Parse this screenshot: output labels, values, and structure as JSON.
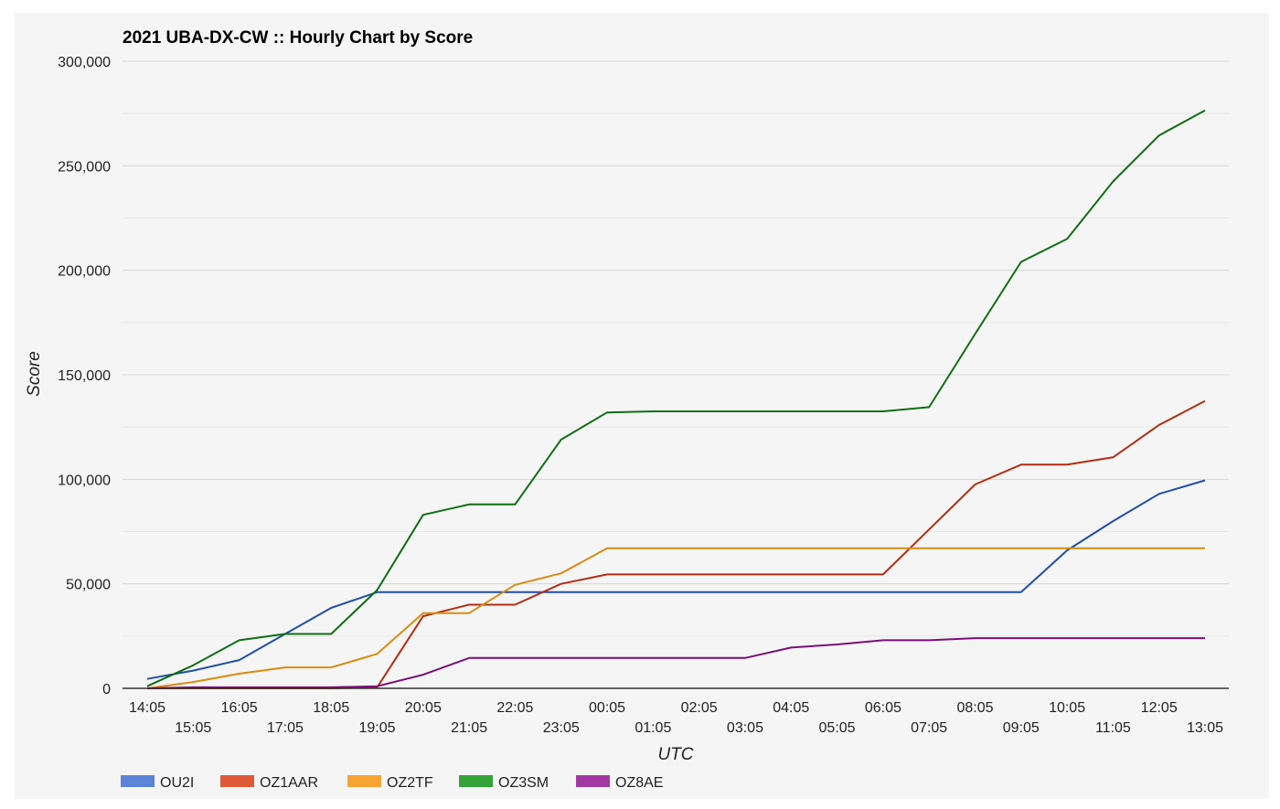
{
  "chart_data": {
    "type": "line",
    "title": "2021 UBA-DX-CW :: Hourly Chart by Score",
    "xlabel": "UTC",
    "ylabel": "Score",
    "ylim": [
      0,
      300000
    ],
    "yticks": [
      0,
      50000,
      100000,
      150000,
      200000,
      250000,
      300000
    ],
    "ytick_labels": [
      "0",
      "50,000",
      "100,000",
      "150,000",
      "200,000",
      "250,000",
      "300,000"
    ],
    "grid": true,
    "legend_position": "bottom-left",
    "categories": [
      "14:05",
      "15:05",
      "16:05",
      "17:05",
      "18:05",
      "19:05",
      "20:05",
      "21:05",
      "22:05",
      "23:05",
      "00:05",
      "01:05",
      "02:05",
      "03:05",
      "04:05",
      "05:05",
      "06:05",
      "07:05",
      "08:05",
      "09:05",
      "10:05",
      "11:05",
      "12:05",
      "13:05"
    ],
    "series": [
      {
        "name": "OU2I",
        "color": "#1f4fa8",
        "legend_color": "#5b84d6",
        "values": [
          4500,
          8500,
          13500,
          26000,
          38500,
          46000,
          46000,
          46000,
          46000,
          46000,
          46000,
          46000,
          46000,
          46000,
          46000,
          46000,
          46000,
          46000,
          46000,
          46000,
          66000,
          80000,
          93000,
          99500
        ]
      },
      {
        "name": "OZ1AAR",
        "color": "#b32d12",
        "legend_color": "#e05a3a",
        "values": [
          0,
          0,
          0,
          0,
          0,
          500,
          34500,
          40000,
          40000,
          50000,
          54500,
          54500,
          54500,
          54500,
          54500,
          54500,
          54500,
          76000,
          97500,
          107000,
          107000,
          110500,
          126000,
          137500
        ]
      },
      {
        "name": "OZ2TF",
        "color": "#d98c0f",
        "legend_color": "#f7a433",
        "values": [
          0,
          3000,
          7000,
          10000,
          10000,
          16500,
          36000,
          36000,
          49500,
          55000,
          67000,
          67000,
          67000,
          67000,
          67000,
          67000,
          67000,
          67000,
          67000,
          67000,
          67000,
          67000,
          67000,
          67000
        ]
      },
      {
        "name": "OZ3SM",
        "color": "#0f6e12",
        "legend_color": "#33a33a",
        "values": [
          1000,
          11000,
          23000,
          26000,
          26000,
          47000,
          83000,
          88000,
          88000,
          119000,
          132000,
          132500,
          132500,
          132500,
          132500,
          132500,
          132500,
          134500,
          169500,
          204000,
          215000,
          242500,
          264500,
          276500
        ]
      },
      {
        "name": "OZ8AE",
        "color": "#7a0f7a",
        "legend_color": "#a33aa3",
        "values": [
          0,
          500,
          500,
          500,
          500,
          1000,
          6500,
          14500,
          14500,
          14500,
          14500,
          14500,
          14500,
          14500,
          19500,
          21000,
          23000,
          23000,
          24000,
          24000,
          24000,
          24000,
          24000,
          24000
        ]
      }
    ]
  }
}
